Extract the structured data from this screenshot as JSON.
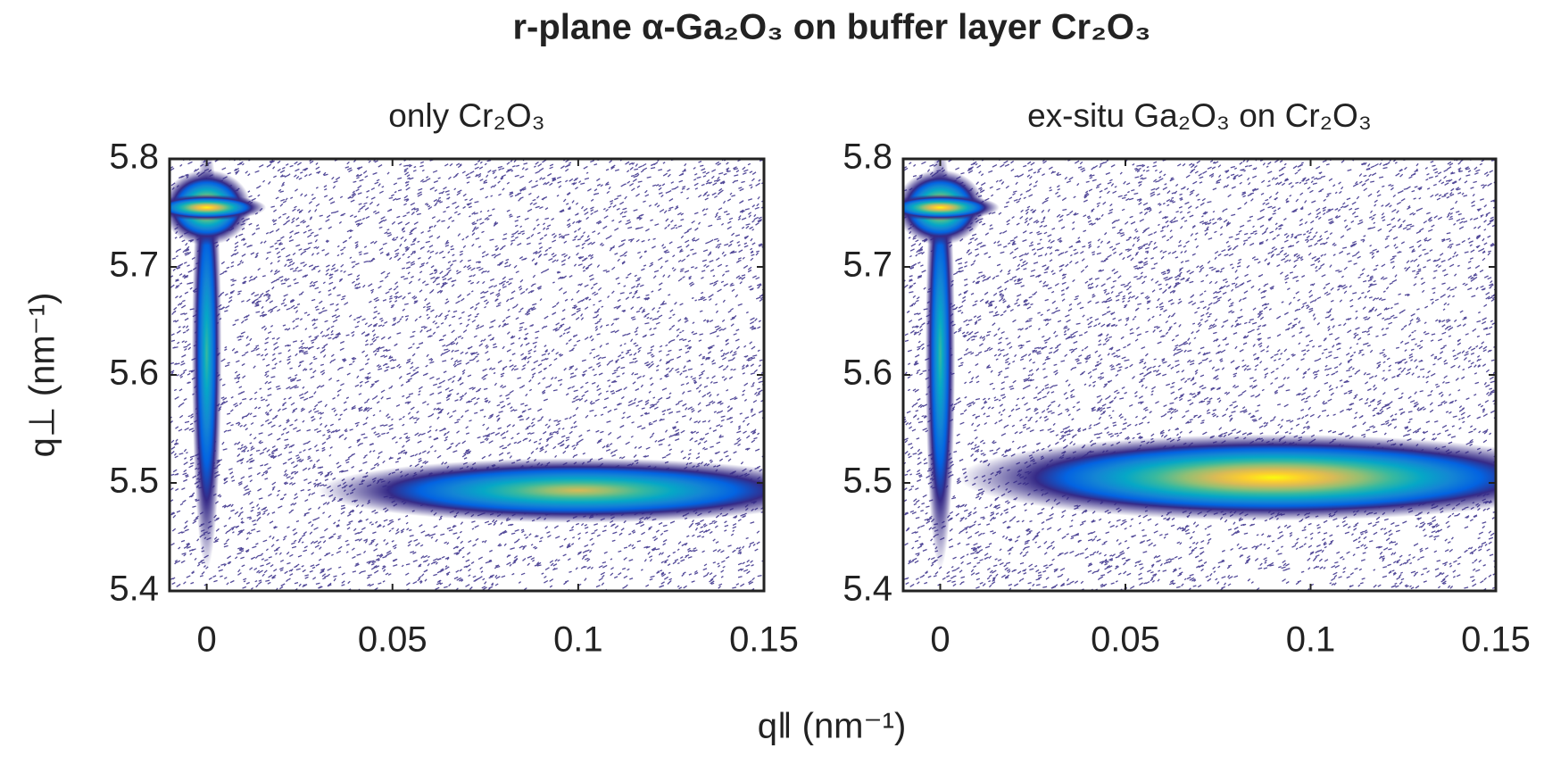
{
  "title": "r-plane α-Ga₂O₃ on buffer layer Cr₂O₃",
  "xlabel": "q‖ (nm⁻¹)",
  "chart_data": [
    {
      "type": "heatmap",
      "title": "only Cr₂O₃",
      "ylabel": "q⊥ (nm⁻¹)",
      "xlim": [
        -0.01,
        0.15
      ],
      "ylim": [
        5.4,
        5.8
      ],
      "xticks": [
        0,
        0.05,
        0.1,
        0.15
      ],
      "yticks": [
        5.4,
        5.5,
        5.6,
        5.7,
        5.8
      ],
      "colormap": [
        "#352a87",
        "#0363e1",
        "#1485d4",
        "#06a7c6",
        "#38b99e",
        "#92bf73",
        "#d9ba56",
        "#fcce2e",
        "#f9fb0e"
      ],
      "peaks": [
        {
          "x": 0.1,
          "y": 5.493,
          "x_width": 0.07,
          "y_width": 0.03,
          "level": 0.8
        },
        {
          "x": 0,
          "y": 5.62,
          "x_width": 0.004,
          "y_width": 0.2,
          "level": 0.6
        },
        {
          "x": 0,
          "y": 5.755,
          "x_width": 0.012,
          "y_width": 0.035,
          "level": 1
        },
        {
          "x": 0,
          "y": 5.755,
          "x_width": 0.016,
          "y_width": 0.012,
          "level": 1
        }
      ]
    },
    {
      "type": "heatmap",
      "title": "ex-situ Ga₂O₃ on Cr₂O₃",
      "xlim": [
        -0.01,
        0.15
      ],
      "ylim": [
        5.4,
        5.8
      ],
      "xticks": [
        0,
        0.05,
        0.1,
        0.15
      ],
      "yticks": [
        5.4,
        5.5,
        5.6,
        5.7,
        5.8
      ],
      "colormap": [
        "#352a87",
        "#0363e1",
        "#1485d4",
        "#06a7c6",
        "#38b99e",
        "#92bf73",
        "#d9ba56",
        "#fcce2e",
        "#f9fb0e"
      ],
      "peaks": [
        {
          "x": 0.09,
          "y": 5.505,
          "x_width": 0.085,
          "y_width": 0.04,
          "level": 1
        },
        {
          "x": 0,
          "y": 5.62,
          "x_width": 0.004,
          "y_width": 0.2,
          "level": 0.6
        },
        {
          "x": 0,
          "y": 5.755,
          "x_width": 0.012,
          "y_width": 0.035,
          "level": 1
        },
        {
          "x": 0,
          "y": 5.755,
          "x_width": 0.016,
          "y_width": 0.012,
          "level": 1
        }
      ]
    }
  ]
}
